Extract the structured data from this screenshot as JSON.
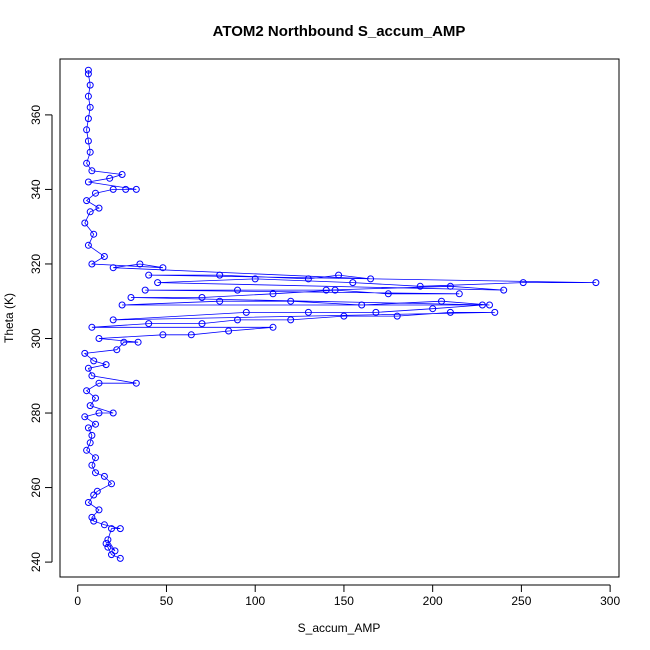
{
  "chart_data": {
    "type": "scatter",
    "title": "ATOM2 Northbound S_accum_AMP",
    "xlabel": "S_accum_AMP",
    "ylabel": "Theta (K)",
    "xlim": [
      -10,
      305
    ],
    "ylim": [
      236,
      375
    ],
    "x_ticks": [
      0,
      50,
      100,
      150,
      200,
      250,
      300
    ],
    "y_ticks": [
      240,
      260,
      280,
      300,
      320,
      340,
      360
    ],
    "grid": false,
    "legend": "none",
    "marker": "open-circle",
    "connected_by_lines": true,
    "series_color": "#0000ff",
    "series": [
      {
        "points": [
          [
            24,
            241
          ],
          [
            19,
            242
          ],
          [
            17,
            244
          ],
          [
            16,
            245
          ],
          [
            21,
            243
          ],
          [
            17,
            246
          ],
          [
            19,
            249
          ],
          [
            24,
            249
          ],
          [
            15,
            250
          ],
          [
            9,
            251
          ],
          [
            8,
            252
          ],
          [
            12,
            254
          ],
          [
            6,
            256
          ],
          [
            9,
            258
          ],
          [
            11,
            259
          ],
          [
            19,
            261
          ],
          [
            15,
            263
          ],
          [
            10,
            264
          ],
          [
            8,
            266
          ],
          [
            10,
            268
          ],
          [
            5,
            270
          ],
          [
            7,
            272
          ],
          [
            8,
            274
          ],
          [
            6,
            276
          ],
          [
            10,
            277
          ],
          [
            4,
            279
          ],
          [
            12,
            280
          ],
          [
            20,
            280
          ],
          [
            7,
            282
          ],
          [
            10,
            284
          ],
          [
            5,
            286
          ],
          [
            12,
            288
          ],
          [
            33,
            288
          ],
          [
            8,
            290
          ],
          [
            6,
            292
          ],
          [
            16,
            293
          ],
          [
            9,
            294
          ],
          [
            4,
            296
          ],
          [
            22,
            297
          ],
          [
            26,
            299
          ],
          [
            34,
            299
          ],
          [
            12,
            300
          ],
          [
            48,
            301
          ],
          [
            64,
            301
          ],
          [
            85,
            302
          ],
          [
            110,
            303
          ],
          [
            8,
            303
          ],
          [
            40,
            304
          ],
          [
            70,
            304
          ],
          [
            90,
            305
          ],
          [
            120,
            305
          ],
          [
            150,
            306
          ],
          [
            180,
            306
          ],
          [
            210,
            307
          ],
          [
            235,
            307
          ],
          [
            20,
            305
          ],
          [
            95,
            307
          ],
          [
            130,
            307
          ],
          [
            168,
            307
          ],
          [
            200,
            308
          ],
          [
            228,
            309
          ],
          [
            25,
            309
          ],
          [
            80,
            310
          ],
          [
            120,
            310
          ],
          [
            160,
            309
          ],
          [
            205,
            310
          ],
          [
            232,
            309
          ],
          [
            30,
            311
          ],
          [
            70,
            311
          ],
          [
            110,
            312
          ],
          [
            145,
            313
          ],
          [
            175,
            312
          ],
          [
            215,
            312
          ],
          [
            38,
            313
          ],
          [
            90,
            313
          ],
          [
            140,
            313
          ],
          [
            210,
            314
          ],
          [
            240,
            313
          ],
          [
            45,
            315
          ],
          [
            100,
            316
          ],
          [
            155,
            315
          ],
          [
            193,
            314
          ],
          [
            251,
            315
          ],
          [
            292,
            315
          ],
          [
            40,
            317
          ],
          [
            80,
            317
          ],
          [
            130,
            316
          ],
          [
            147,
            317
          ],
          [
            165,
            316
          ],
          [
            20,
            319
          ],
          [
            35,
            320
          ],
          [
            48,
            319
          ],
          [
            8,
            320
          ],
          [
            15,
            322
          ],
          [
            6,
            325
          ],
          [
            9,
            328
          ],
          [
            4,
            331
          ],
          [
            7,
            334
          ],
          [
            12,
            335
          ],
          [
            5,
            337
          ],
          [
            10,
            339
          ],
          [
            20,
            340
          ],
          [
            27,
            340
          ],
          [
            33,
            340
          ],
          [
            6,
            342
          ],
          [
            18,
            343
          ],
          [
            25,
            344
          ],
          [
            8,
            345
          ],
          [
            5,
            347
          ],
          [
            7,
            350
          ],
          [
            6,
            353
          ],
          [
            5,
            356
          ],
          [
            6,
            359
          ],
          [
            7,
            362
          ],
          [
            6,
            365
          ],
          [
            7,
            368
          ],
          [
            6,
            371
          ],
          [
            6,
            372
          ]
        ]
      }
    ]
  }
}
